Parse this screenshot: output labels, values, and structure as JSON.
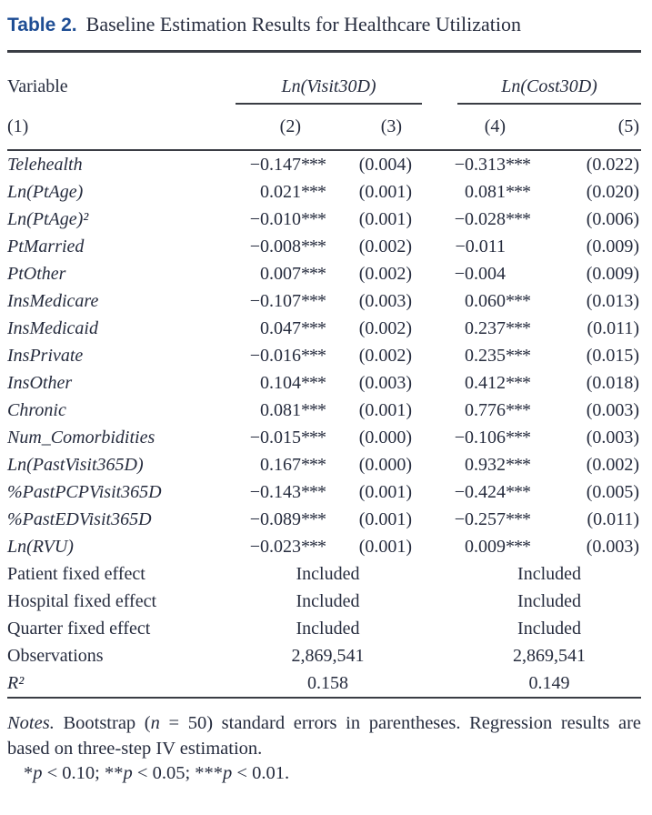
{
  "colors": {
    "accent_blue": "#1e4d94",
    "text": "#262c3e",
    "rule": "#3a3d44"
  },
  "title": {
    "label": "Table 2.",
    "text": "Baseline Estimation Results for Healthcare Utilization"
  },
  "table": {
    "header": {
      "variable": "Variable",
      "visit_group": "Ln(Visit30D)",
      "cost_group": "Ln(Cost30D)",
      "col1": "(1)",
      "col2": "(2)",
      "col3": "(3)",
      "col4": "(4)",
      "col5": "(5)"
    },
    "rows": [
      {
        "variable": "Telehealth",
        "coef_visit": "−0.147",
        "stars_visit": "***",
        "se_visit": "(0.004)",
        "coef_cost": "−0.313",
        "stars_cost": "***",
        "se_cost": "(0.022)"
      },
      {
        "variable": "Ln(PtAge)",
        "coef_visit": "0.021",
        "stars_visit": "***",
        "se_visit": "(0.001)",
        "coef_cost": "0.081",
        "stars_cost": "***",
        "se_cost": "(0.020)"
      },
      {
        "variable": "Ln(PtAge)²",
        "coef_visit": "−0.010",
        "stars_visit": "***",
        "se_visit": "(0.001)",
        "coef_cost": "−0.028",
        "stars_cost": "***",
        "se_cost": "(0.006)"
      },
      {
        "variable": "PtMarried",
        "coef_visit": "−0.008",
        "stars_visit": "***",
        "se_visit": "(0.002)",
        "coef_cost": "−0.011",
        "stars_cost": "",
        "se_cost": "(0.009)"
      },
      {
        "variable": "PtOther",
        "coef_visit": "0.007",
        "stars_visit": "***",
        "se_visit": "(0.002)",
        "coef_cost": "−0.004",
        "stars_cost": "",
        "se_cost": "(0.009)"
      },
      {
        "variable": "InsMedicare",
        "coef_visit": "−0.107",
        "stars_visit": "***",
        "se_visit": "(0.003)",
        "coef_cost": "0.060",
        "stars_cost": "***",
        "se_cost": "(0.013)"
      },
      {
        "variable": "InsMedicaid",
        "coef_visit": "0.047",
        "stars_visit": "***",
        "se_visit": "(0.002)",
        "coef_cost": "0.237",
        "stars_cost": "***",
        "se_cost": "(0.011)"
      },
      {
        "variable": "InsPrivate",
        "coef_visit": "−0.016",
        "stars_visit": "***",
        "se_visit": "(0.002)",
        "coef_cost": "0.235",
        "stars_cost": "***",
        "se_cost": "(0.015)"
      },
      {
        "variable": "InsOther",
        "coef_visit": "0.104",
        "stars_visit": "***",
        "se_visit": "(0.003)",
        "coef_cost": "0.412",
        "stars_cost": "***",
        "se_cost": "(0.018)"
      },
      {
        "variable": "Chronic",
        "coef_visit": "0.081",
        "stars_visit": "***",
        "se_visit": "(0.001)",
        "coef_cost": "0.776",
        "stars_cost": "***",
        "se_cost": "(0.003)"
      },
      {
        "variable": "Num_Comorbidities",
        "coef_visit": "−0.015",
        "stars_visit": "***",
        "se_visit": "(0.000)",
        "coef_cost": "−0.106",
        "stars_cost": "***",
        "se_cost": "(0.003)"
      },
      {
        "variable": "Ln(PastVisit365D)",
        "coef_visit": "0.167",
        "stars_visit": "***",
        "se_visit": "(0.000)",
        "coef_cost": "0.932",
        "stars_cost": "***",
        "se_cost": "(0.002)"
      },
      {
        "variable": "%PastPCPVisit365D",
        "coef_visit": "−0.143",
        "stars_visit": "***",
        "se_visit": "(0.001)",
        "coef_cost": "−0.424",
        "stars_cost": "***",
        "se_cost": "(0.005)"
      },
      {
        "variable": "%PastEDVisit365D",
        "coef_visit": "−0.089",
        "stars_visit": "***",
        "se_visit": "(0.001)",
        "coef_cost": "−0.257",
        "stars_cost": "***",
        "se_cost": "(0.011)"
      },
      {
        "variable": "Ln(RVU)",
        "coef_visit": "−0.023",
        "stars_visit": "***",
        "se_visit": "(0.001)",
        "coef_cost": "0.009",
        "stars_cost": "***",
        "se_cost": "(0.003)"
      }
    ],
    "summary": [
      {
        "label": "Patient fixed effect",
        "visit": "Included",
        "cost": "Included"
      },
      {
        "label": "Hospital fixed effect",
        "visit": "Included",
        "cost": "Included"
      },
      {
        "label": "Quarter fixed effect",
        "visit": "Included",
        "cost": "Included"
      },
      {
        "label": "Observations",
        "visit": "2,869,541",
        "cost": "2,869,541"
      },
      {
        "label": "R²",
        "visit": "0.158",
        "cost": "0.149"
      }
    ]
  },
  "notes": {
    "label": "Notes.",
    "part1": "  Bootstrap (",
    "n": "n",
    "part2": " = 50) standard errors in parentheses. Regression results are based on three-step IV estimation.",
    "sig": [
      "*",
      "p",
      " < 0.10; **",
      "p",
      " < 0.05; ***",
      "p",
      " < 0.01."
    ]
  }
}
